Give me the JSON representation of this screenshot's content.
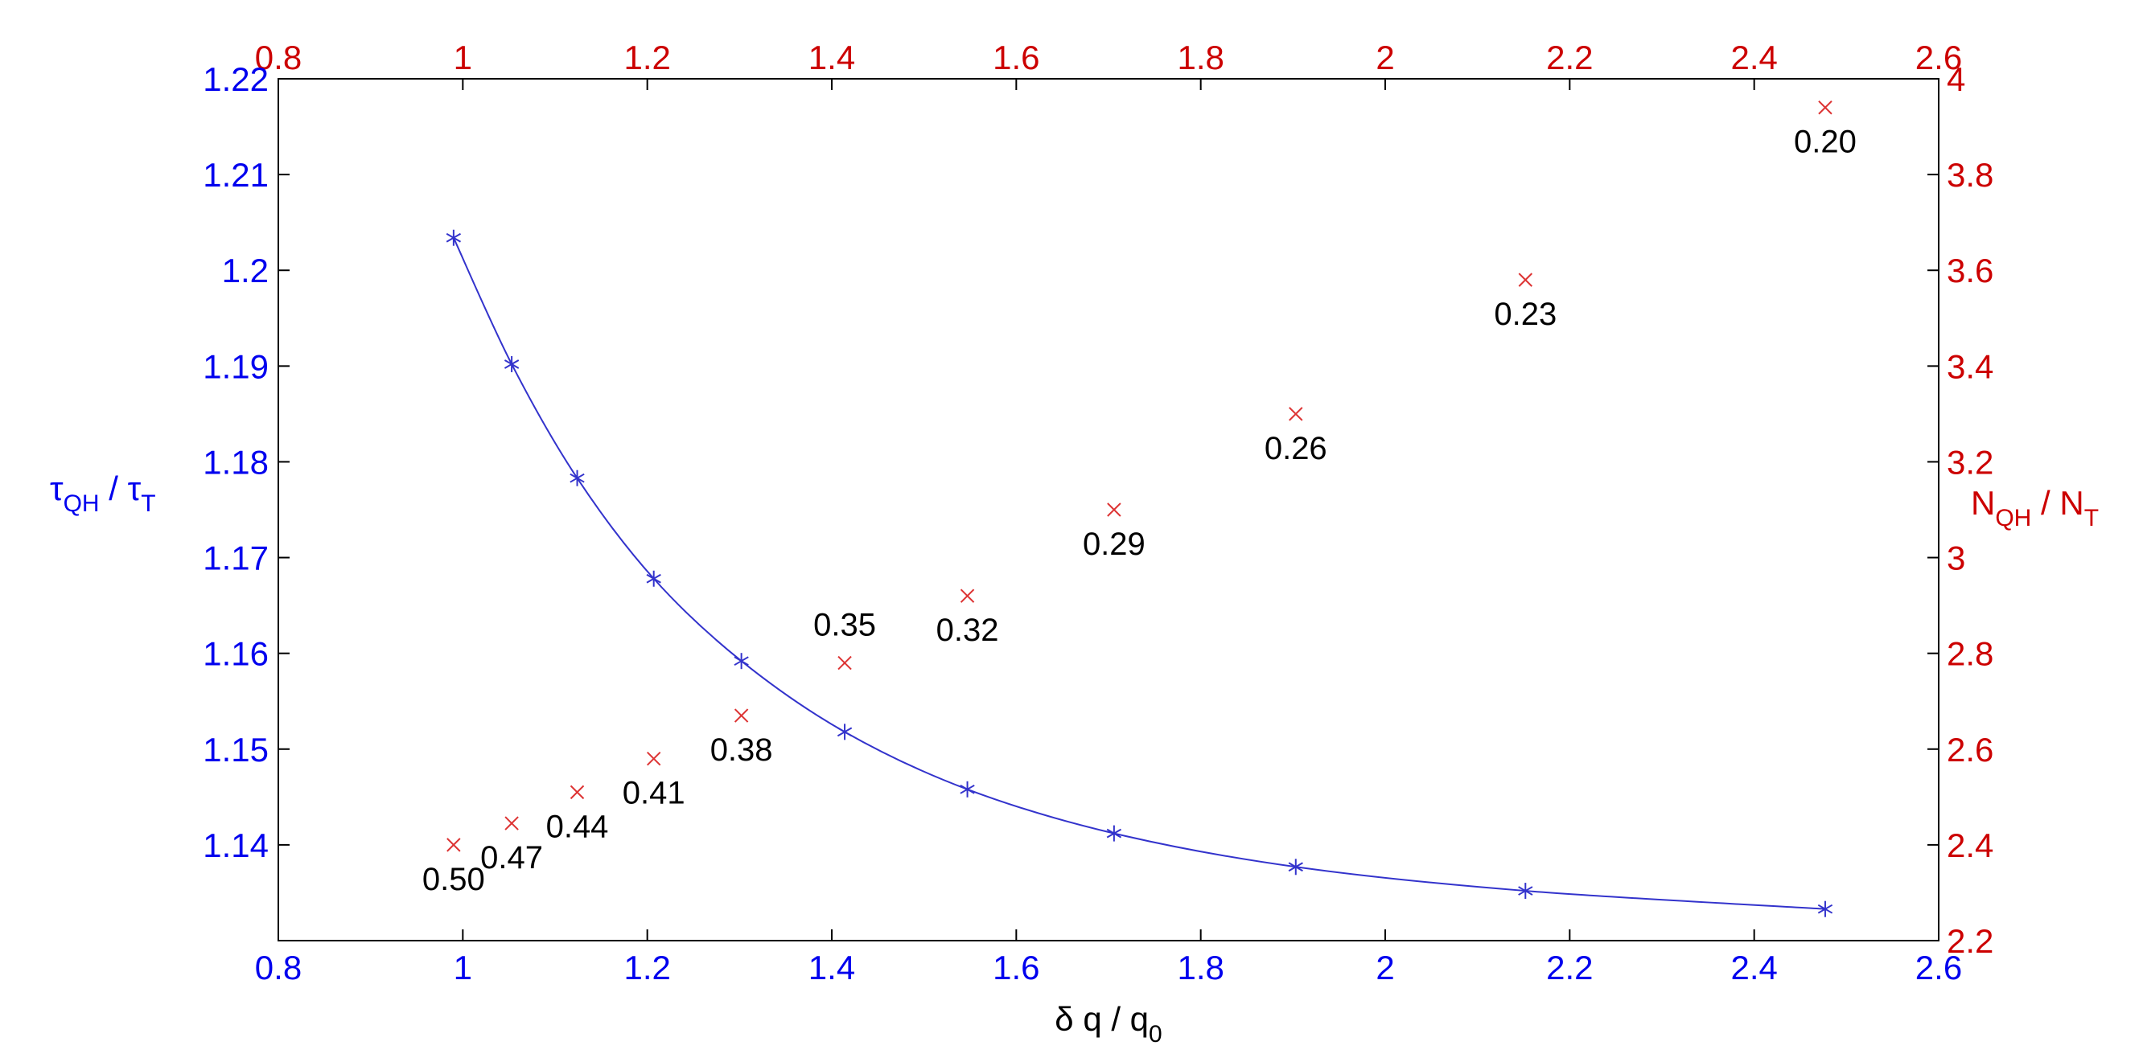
{
  "chart_data": {
    "type": "scatter",
    "x_axis": {
      "label": "δ q / q",
      "label_sub": "0",
      "lim": [
        0.8,
        2.6
      ],
      "ticks": [
        "0.8",
        "1",
        "1.2",
        "1.4",
        "1.6",
        "1.8",
        "2",
        "2.2",
        "2.4",
        "2.6"
      ],
      "color": "#0000ee"
    },
    "x_axis_top": {
      "lim": [
        0.8,
        2.6
      ],
      "ticks": [
        "0.8",
        "1",
        "1.2",
        "1.4",
        "1.6",
        "1.8",
        "2",
        "2.2",
        "2.4",
        "2.6"
      ],
      "color": "#cc0000"
    },
    "y_axis_left": {
      "label_main": "τ",
      "label_sub1": "QH",
      "label_mid": " / τ",
      "label_sub2": "T",
      "lim": [
        1.13,
        1.22
      ],
      "ticks": [
        "1.14",
        "1.15",
        "1.16",
        "1.17",
        "1.18",
        "1.19",
        "1.2",
        "1.21",
        "1.22"
      ],
      "color": "#0000ee"
    },
    "y_axis_right": {
      "label_main": "N",
      "label_sub1": "QH",
      "label_mid": " / N",
      "label_sub2": "T",
      "lim": [
        2.2,
        4.0
      ],
      "ticks": [
        "2.2",
        "2.4",
        "2.6",
        "2.8",
        "3",
        "3.2",
        "3.4",
        "3.6",
        "3.8",
        "4"
      ],
      "color": "#cc0000"
    },
    "grid": false,
    "series": [
      {
        "axis": "left",
        "marker": "asterisk",
        "line": "smooth",
        "color": "#3333cc",
        "x": [
          0.99,
          1.053,
          1.124,
          1.207,
          1.302,
          1.414,
          1.547,
          1.706,
          1.903,
          2.152,
          2.477
        ],
        "y": [
          1.2034,
          1.1902,
          1.1783,
          1.1678,
          1.1592,
          1.1518,
          1.1458,
          1.1412,
          1.1377,
          1.1352,
          1.1333
        ]
      },
      {
        "axis": "right",
        "marker": "x",
        "line": "none",
        "color": "#dd3333",
        "x": [
          0.99,
          1.053,
          1.124,
          1.207,
          1.302,
          1.414,
          1.547,
          1.706,
          1.903,
          2.152,
          2.477
        ],
        "y": [
          2.4,
          2.445,
          2.51,
          2.58,
          2.67,
          2.78,
          2.92,
          3.1,
          3.3,
          3.58,
          3.94
        ]
      }
    ],
    "annotations": [
      {
        "text": "0.50",
        "x": 0.99,
        "y": 2.4,
        "pos": "below"
      },
      {
        "text": "0.47",
        "x": 1.053,
        "y": 2.445,
        "pos": "below"
      },
      {
        "text": "0.44",
        "x": 1.124,
        "y": 2.51,
        "pos": "below"
      },
      {
        "text": "0.41",
        "x": 1.207,
        "y": 2.58,
        "pos": "below"
      },
      {
        "text": "0.38",
        "x": 1.302,
        "y": 2.67,
        "pos": "below"
      },
      {
        "text": "0.35",
        "x": 1.414,
        "y": 2.78,
        "pos": "above"
      },
      {
        "text": "0.32",
        "x": 1.547,
        "y": 2.92,
        "pos": "below"
      },
      {
        "text": "0.29",
        "x": 1.706,
        "y": 3.1,
        "pos": "below"
      },
      {
        "text": "0.26",
        "x": 1.903,
        "y": 3.3,
        "pos": "below"
      },
      {
        "text": "0.23",
        "x": 2.152,
        "y": 3.58,
        "pos": "below"
      },
      {
        "text": "0.20",
        "x": 2.477,
        "y": 3.94,
        "pos": "below"
      }
    ]
  }
}
